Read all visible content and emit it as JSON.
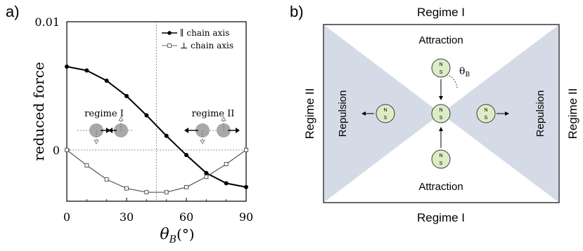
{
  "panel_a_label": "a)",
  "panel_b_label": "b)",
  "chart_data": {
    "type": "line",
    "title": "",
    "xlabel": "θ_B(°)",
    "xlabel_main": "θ",
    "xlabel_sub": "B",
    "xlabel_unit": "(°)",
    "ylabel": "reduced force",
    "xlim": [
      0,
      90
    ],
    "ylim": [
      -0.004,
      0.01
    ],
    "xticks": [
      0,
      30,
      60,
      90
    ],
    "yticks": [
      {
        "value": 0.01,
        "label": "0.01"
      },
      {
        "value": 0,
        "label": "0"
      }
    ],
    "grid": false,
    "legend_position": "top-right",
    "reference_lines": {
      "y": 0,
      "x": 45
    },
    "x": [
      0,
      10,
      20,
      30,
      40,
      50,
      60,
      70,
      80,
      90
    ],
    "series": [
      {
        "name": "∥ chain axis",
        "marker": "filled-circle",
        "values": [
          0.0065,
          0.0062,
          0.0054,
          0.0042,
          0.0027,
          0.0011,
          -0.0004,
          -0.0018,
          -0.0026,
          -0.0029
        ]
      },
      {
        "name": "⊥ chain axis",
        "marker": "open-square",
        "values": [
          0.0,
          -0.0012,
          -0.0023,
          -0.003,
          -0.0033,
          -0.0033,
          -0.0029,
          -0.0021,
          -0.0011,
          0.0
        ]
      }
    ],
    "annotations": [
      {
        "text": "regime I",
        "x": 15,
        "y": 0.0028
      },
      {
        "text": "regime II",
        "x": 80,
        "y": 0.0028
      }
    ]
  },
  "diagram": {
    "regime_top": "Regime I",
    "regime_bottom": "Regime I",
    "regime_left": "Regime II",
    "regime_right": "Regime II",
    "attraction_top": "Attraction",
    "attraction_bottom": "Attraction",
    "repulsion_left": "Repulsion",
    "repulsion_right": "Repulsion",
    "angle_main": "θ",
    "angle_sub": "B",
    "pole_n": "N",
    "pole_s": "S",
    "colors": {
      "shaded": "#d5dbe6",
      "particle": "#dcedc6",
      "particle_stroke": "#3a3a3a"
    }
  }
}
